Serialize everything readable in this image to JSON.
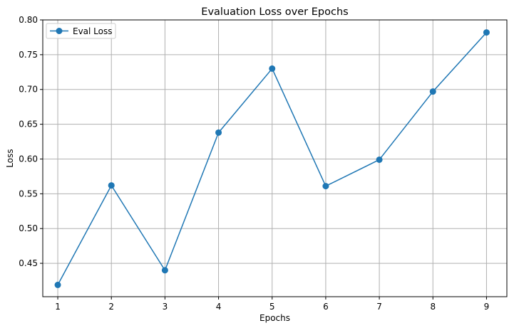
{
  "chart_data": {
    "type": "line",
    "title": "Evaluation Loss over Epochs",
    "xlabel": "Epochs",
    "ylabel": "Loss",
    "x": [
      1,
      2,
      3,
      4,
      5,
      6,
      7,
      8,
      9
    ],
    "xlim": [
      0.72,
      9.38
    ],
    "ylim": [
      0.402,
      0.8
    ],
    "xticks": [
      1,
      2,
      3,
      4,
      5,
      6,
      7,
      8,
      9
    ],
    "yticks": [
      0.45,
      0.5,
      0.55,
      0.6,
      0.65,
      0.7,
      0.75,
      0.8
    ],
    "ytick_labels": [
      "0.45",
      "0.50",
      "0.55",
      "0.60",
      "0.65",
      "0.70",
      "0.75",
      "0.80"
    ],
    "grid": true,
    "legend_position": "top-left",
    "series": [
      {
        "name": "Eval Loss",
        "marker": "circle",
        "color": "#1f77b4",
        "values": [
          0.419,
          0.562,
          0.44,
          0.638,
          0.73,
          0.561,
          0.599,
          0.697,
          0.782
        ]
      }
    ]
  }
}
